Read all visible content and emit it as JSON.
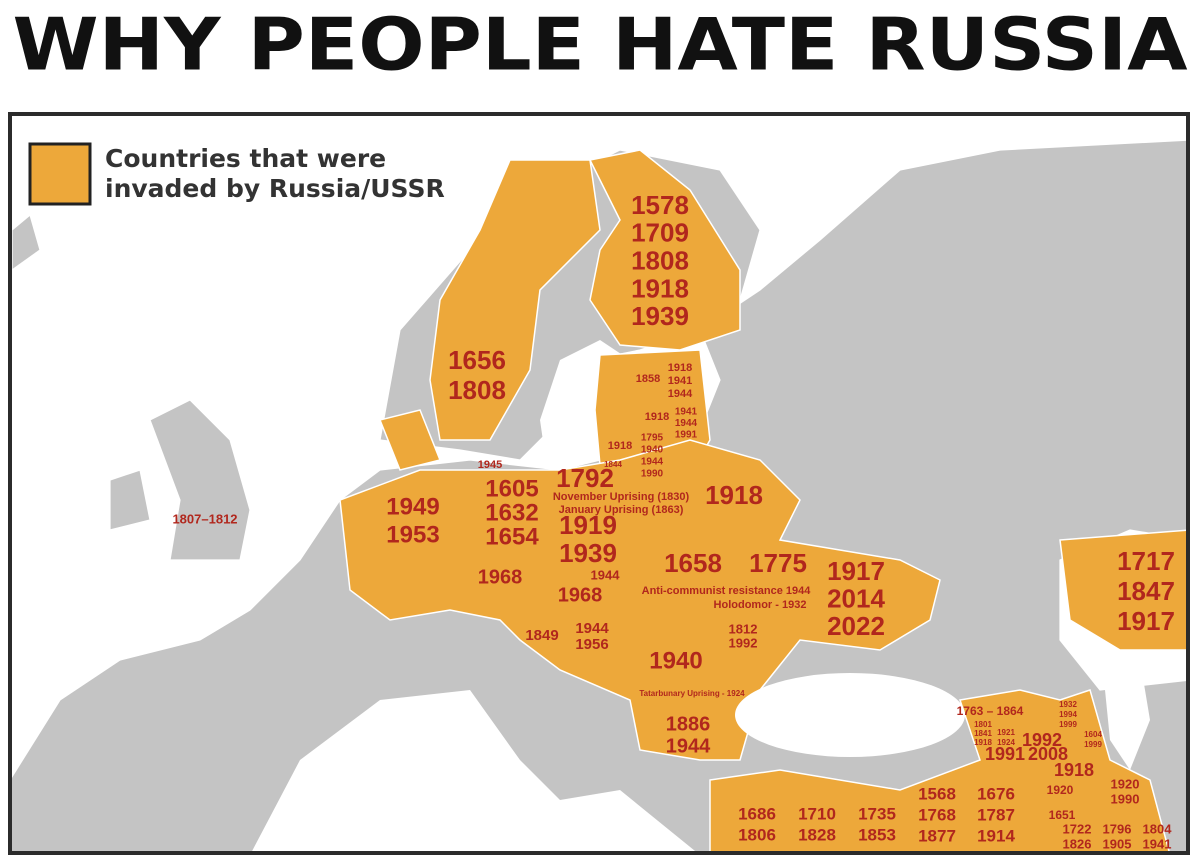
{
  "header": {
    "title": "WHY PEOPLE HATE RUSSIA"
  },
  "legend": {
    "lines": [
      "Countries that were",
      "invaded by Russia/USSR"
    ]
  },
  "labels": [
    [
      "1578",
      "1709",
      "1808",
      "1918",
      "1939"
    ],
    [
      "1656",
      "1808"
    ],
    [
      "1858"
    ],
    [
      "1918",
      "1941",
      "1944"
    ],
    [
      "1918"
    ],
    [
      "1941",
      "1944",
      "1991"
    ],
    [
      "1918"
    ],
    [
      "1795",
      "1940",
      "1944",
      "1990"
    ],
    [
      "1844"
    ],
    [
      "1945"
    ],
    [
      "1807–1812"
    ],
    [
      "1949",
      "1953"
    ],
    [
      "1605",
      "1632",
      "1654"
    ],
    [
      "1792"
    ],
    [
      "November Uprising (1830)",
      "January Uprising (1863)"
    ],
    [
      "1919",
      "1939"
    ],
    [
      "1918"
    ],
    [
      "1968"
    ],
    [
      "1944"
    ],
    [
      "1968"
    ],
    [
      "1658"
    ],
    [
      "1775"
    ],
    [
      "1917",
      "2014",
      "2022"
    ],
    [
      "Anti-communist resistance 1944"
    ],
    [
      "Holodomor - 1932"
    ],
    [
      "1849"
    ],
    [
      "1944",
      "1956"
    ],
    [
      "1812",
      "1992"
    ],
    [
      "1940"
    ],
    [
      "Tatarbunary Uprising - 1924"
    ],
    [
      "1886",
      "1944"
    ],
    [
      "1717",
      "1847",
      "1917"
    ],
    [
      "1763 – 1864"
    ],
    [
      "1932",
      "1994",
      "1999"
    ],
    [
      "1801",
      "1841",
      "1918"
    ],
    [
      "1921",
      "1924"
    ],
    [
      "1992"
    ],
    [
      "1991"
    ],
    [
      "2008"
    ],
    [
      "1918"
    ],
    [
      "1604",
      "1999"
    ],
    [
      "1920"
    ],
    [
      "1920",
      "1990"
    ],
    [
      "1651"
    ],
    [
      "1722",
      "1826"
    ],
    [
      "1796",
      "1905"
    ],
    [
      "1804",
      "1941"
    ],
    [
      "1568",
      "1768",
      "1877"
    ],
    [
      "1676",
      "1787",
      "1914"
    ],
    [
      "1686",
      "1806"
    ],
    [
      "1710",
      "1828"
    ],
    [
      "1735",
      "1853"
    ]
  ]
}
